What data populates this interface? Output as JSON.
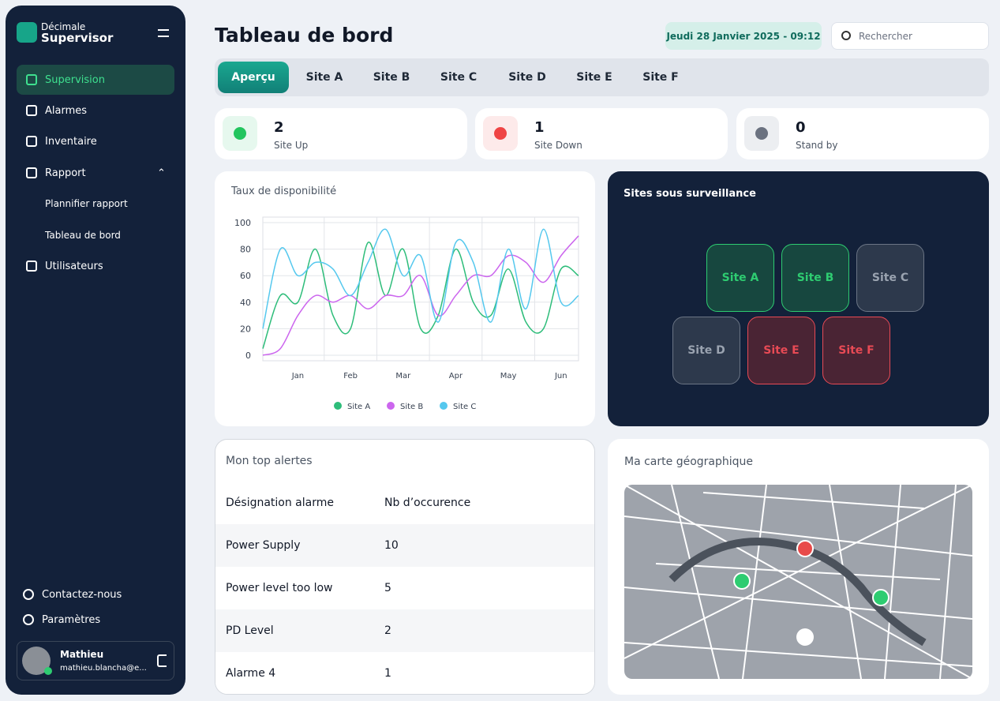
{
  "sidebar": {
    "brand_top": "Décimale",
    "brand_bottom": "Supervisor",
    "nav": [
      "Supervision",
      "Alarmes",
      "Inventaire",
      "Rapport"
    ],
    "subnav": [
      "Plannifier rapport",
      "Tableau de bord"
    ],
    "nav_after": "Utilisateurs",
    "footer_links": [
      "Contactez-nous",
      "Paramètres"
    ],
    "user": {
      "name": "Mathieu",
      "email": "mathieu.blancha@e..."
    }
  },
  "header": {
    "title": "Tableau de bord",
    "date": "Jeudi 28 Janvier 2025 - 09:12",
    "search_placeholder": "Rechercher"
  },
  "tabs": [
    "Aperçu",
    "Site A",
    "Site B",
    "Site C",
    "Site D",
    "Site E",
    "Site F"
  ],
  "stats": [
    {
      "value": 2,
      "label": "Site Up"
    },
    {
      "value": 1,
      "label": "Site Down"
    },
    {
      "value": 0,
      "label": "Stand by"
    }
  ],
  "availability_chart": {
    "type": "line",
    "title": "Taux de disponibilité",
    "categories": [
      null,
      null,
      "Jan",
      null,
      null,
      "Feb",
      null,
      null,
      "Mar",
      null,
      null,
      "Apr",
      null,
      null,
      "May",
      null,
      null,
      "Jun",
      null
    ],
    "series": [
      {
        "name": "Site A",
        "color": "#2ebd7a",
        "values": [
          5,
          45,
          40,
          80,
          30,
          20,
          85,
          45,
          80,
          20,
          30,
          80,
          40,
          30,
          65,
          25,
          20,
          65,
          60
        ]
      },
      {
        "name": "Site B",
        "color": "#cc66ee",
        "values": [
          0,
          5,
          30,
          45,
          40,
          45,
          35,
          45,
          45,
          60,
          30,
          45,
          60,
          60,
          75,
          70,
          55,
          75,
          90
        ]
      },
      {
        "name": "Site C",
        "color": "#55c8ee",
        "values": [
          20,
          80,
          60,
          70,
          65,
          45,
          70,
          95,
          60,
          75,
          25,
          85,
          70,
          25,
          80,
          35,
          95,
          40,
          45
        ]
      }
    ],
    "ylim": [
      0,
      100
    ],
    "yticks": [
      0,
      20,
      40,
      60,
      80,
      100
    ],
    "grid": true
  },
  "sites_panel": {
    "title": "Sites sous surveillance",
    "sites": [
      "Site A",
      "Site B",
      "Site C",
      "Site D",
      "Site E",
      "Site F"
    ]
  },
  "alerts": {
    "title": "Mon top alertes",
    "columns": [
      "Désignation alarme",
      "Nb d’occurence"
    ],
    "rows": [
      [
        "Power Supply",
        10
      ],
      [
        "Power level too low",
        5
      ],
      [
        "PD Level",
        2
      ],
      [
        "Alarme 4",
        1
      ]
    ]
  },
  "map": {
    "title": "Ma carte géographique"
  }
}
